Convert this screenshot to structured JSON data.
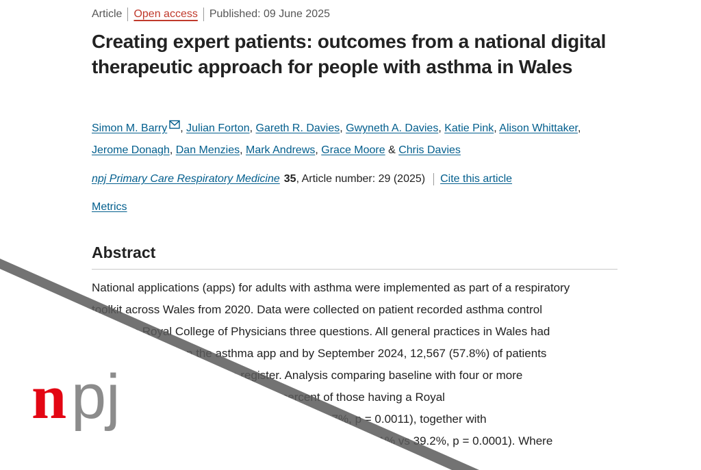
{
  "meta": {
    "type": "Article",
    "access": "Open access",
    "published": "Published: 09 June 2025"
  },
  "title": "Creating expert patients: outcomes from a national digital therapeutic approach for people with asthma in Wales",
  "authors": [
    "Simon M. Barry",
    "Julian Forton",
    "Gareth R. Davies",
    "Gwyneth A. Davies",
    "Katie Pink",
    "Alison Whittaker",
    "Jerome Donagh",
    "Dan Menzies",
    "Mark Andrews",
    "Grace Moore",
    "Chris Davies"
  ],
  "author_join": "&",
  "journal": {
    "name": "npj Primary Care Respiratory Medicine",
    "volume": "35",
    "article_number": ", Article number: 29 (2025)",
    "cite": "Cite this article"
  },
  "metrics": "Metrics",
  "abstract": {
    "heading": "Abstract",
    "lines": [
      "National applications (apps) for adults with asthma were implemented as part of a respiratory",
      "toolkit across Wales from 2020. Data were collected on patient recorded asthma control",
      "using the Royal College of Physicians three questions. All general practices in Wales had",
      "been onboarded on the asthma app and by September 2024, 12,567 (57.8%) of patients",
      "invited to register went on to register. Analysis comparing baseline with four or more",
      "entries showed improvements in the percent of those having a Royal",
      "College of Physicians score of 0 (26.5% vs 40.7%, p = 0.0011), together with",
      "improvements in those being well controlled overall (29.1% vs 39.2%, p = 0.0001). Where"
    ]
  },
  "logo": {
    "text": "npj",
    "n_color": "#e30613",
    "pj_color": "#8c8c8c"
  },
  "colors": {
    "link": "#025e8d",
    "open_access": "#c0392b",
    "text": "#222222"
  },
  "icons": {
    "author_email": "mail-icon"
  }
}
